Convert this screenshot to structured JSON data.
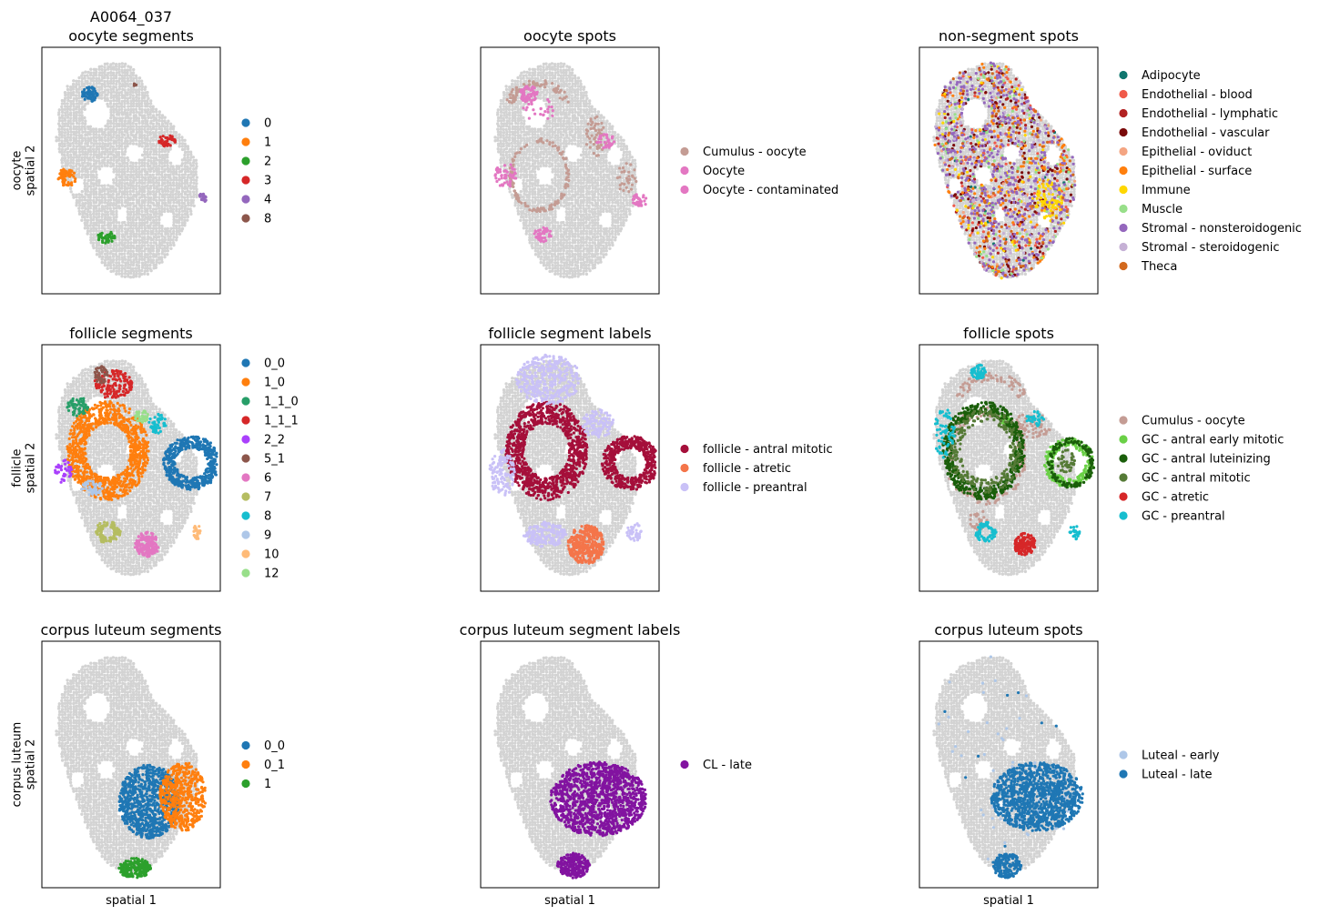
{
  "figure": {
    "sample_id": "A0064_037",
    "background_color": "#d3d3d3",
    "row_ylabels": [
      [
        "oocyte",
        "spatial 2"
      ],
      [
        "follicle",
        "spatial 2"
      ],
      [
        "corpus luteum",
        "spatial 2"
      ]
    ],
    "xlabel": "spatial 1"
  },
  "chart_data": [
    {
      "type": "scatter",
      "title": "oocyte segments",
      "legend": [
        {
          "label": "0",
          "color": "#1f77b4"
        },
        {
          "label": "1",
          "color": "#ff7f0e"
        },
        {
          "label": "2",
          "color": "#2ca02c"
        },
        {
          "label": "3",
          "color": "#d62728"
        },
        {
          "label": "4",
          "color": "#9467bd"
        },
        {
          "label": "8",
          "color": "#8c564b"
        }
      ]
    },
    {
      "type": "scatter",
      "title": "oocyte spots",
      "legend": [
        {
          "label": "Cumulus - oocyte",
          "color": "#c49c94"
        },
        {
          "label": "Oocyte",
          "color": "#e377c2"
        },
        {
          "label": "Oocyte - contaminated",
          "color": "#e377c2"
        }
      ]
    },
    {
      "type": "scatter",
      "title": "non-segment spots",
      "legend": [
        {
          "label": "Adipocyte",
          "color": "#0f766e"
        },
        {
          "label": "Endothelial - blood",
          "color": "#f05a4a"
        },
        {
          "label": "Endothelial - lymphatic",
          "color": "#b22222"
        },
        {
          "label": "Endothelial - vascular",
          "color": "#7a0a0a"
        },
        {
          "label": "Epithelial - oviduct",
          "color": "#f4a582"
        },
        {
          "label": "Epithelial - surface",
          "color": "#ff7f0e"
        },
        {
          "label": "Immune",
          "color": "#ffd700"
        },
        {
          "label": "Muscle",
          "color": "#98df8a"
        },
        {
          "label": "Stromal - nonsteroidogenic",
          "color": "#9467bd"
        },
        {
          "label": "Stromal - steroidogenic",
          "color": "#c5b0d5"
        },
        {
          "label": "Theca",
          "color": "#d2691e"
        }
      ]
    },
    {
      "type": "scatter",
      "title": "follicle segments",
      "legend": [
        {
          "label": "0_0",
          "color": "#1f77b4"
        },
        {
          "label": "1_0",
          "color": "#ff7f0e"
        },
        {
          "label": "1_1_0",
          "color": "#279e68"
        },
        {
          "label": "1_1_1",
          "color": "#d62728"
        },
        {
          "label": "2_2",
          "color": "#aa40fc"
        },
        {
          "label": "5_1",
          "color": "#8c564b"
        },
        {
          "label": "6",
          "color": "#e377c2"
        },
        {
          "label": "7",
          "color": "#b5bd61"
        },
        {
          "label": "8",
          "color": "#17becf"
        },
        {
          "label": "9",
          "color": "#aec7e8"
        },
        {
          "label": "10",
          "color": "#ffbb78"
        },
        {
          "label": "12",
          "color": "#98df8a"
        }
      ]
    },
    {
      "type": "scatter",
      "title": "follicle segment labels",
      "legend": [
        {
          "label": "follicle - antral mitotic",
          "color": "#a50f3a"
        },
        {
          "label": "follicle - atretic",
          "color": "#f4754a"
        },
        {
          "label": "follicle - preantral",
          "color": "#c9c1f7"
        }
      ]
    },
    {
      "type": "scatter",
      "title": "follicle spots",
      "legend": [
        {
          "label": "Cumulus - oocyte",
          "color": "#c49c94"
        },
        {
          "label": "GC - antral early mitotic",
          "color": "#6ad046"
        },
        {
          "label": "GC - antral luteinizing",
          "color": "#1a5e0a"
        },
        {
          "label": "GC - antral mitotic",
          "color": "#557a36"
        },
        {
          "label": "GC - atretic",
          "color": "#d62728"
        },
        {
          "label": "GC - preantral",
          "color": "#17becf"
        }
      ]
    },
    {
      "type": "scatter",
      "title": "corpus luteum segments",
      "legend": [
        {
          "label": "0_0",
          "color": "#1f77b4"
        },
        {
          "label": "0_1",
          "color": "#ff7f0e"
        },
        {
          "label": "1",
          "color": "#2ca02c"
        }
      ]
    },
    {
      "type": "scatter",
      "title": "corpus luteum segment labels",
      "legend": [
        {
          "label": "CL - late",
          "color": "#8213a0"
        }
      ]
    },
    {
      "type": "scatter",
      "title": "corpus luteum spots",
      "legend": [
        {
          "label": "Luteal - early",
          "color": "#aec7e8"
        },
        {
          "label": "Luteal - late",
          "color": "#1f77b4"
        }
      ]
    }
  ]
}
